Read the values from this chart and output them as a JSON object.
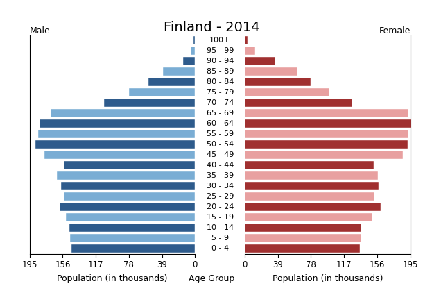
{
  "title": "Finland - 2014",
  "label_male": "Male",
  "label_female": "Female",
  "xlabel_left": "Population (in thousands)",
  "xlabel_center": "Age Group",
  "xlabel_right": "Population (in thousands)",
  "age_groups": [
    "100+",
    "95 - 99",
    "90 - 94",
    "85 - 89",
    "80 - 84",
    "75 - 79",
    "70 - 74",
    "65 - 69",
    "60 - 64",
    "55 - 59",
    "50 - 54",
    "45 - 49",
    "40 - 44",
    "35 - 39",
    "30 - 34",
    "25 - 29",
    "20 - 24",
    "15 - 19",
    "10 - 14",
    "5 - 9",
    "0 - 4"
  ],
  "male_values": [
    2,
    5,
    14,
    38,
    55,
    78,
    107,
    170,
    183,
    185,
    188,
    178,
    155,
    163,
    158,
    155,
    160,
    152,
    148,
    147,
    146
  ],
  "female_values": [
    3,
    12,
    36,
    62,
    78,
    100,
    127,
    193,
    196,
    193,
    192,
    186,
    152,
    157,
    158,
    153,
    160,
    150,
    137,
    137,
    136
  ],
  "male_colors_dark": "#2e5b8c",
  "male_colors_light": "#7aadd4",
  "female_colors_dark": "#a03030",
  "female_colors_light": "#e8a0a0",
  "background_color": "#ffffff",
  "xlim": 195,
  "xticks": [
    0,
    39,
    78,
    117,
    156,
    195
  ],
  "bar_height": 0.8,
  "title_fontsize": 14,
  "axis_fontsize": 9,
  "label_fontsize": 9,
  "tick_fontsize": 8.5
}
